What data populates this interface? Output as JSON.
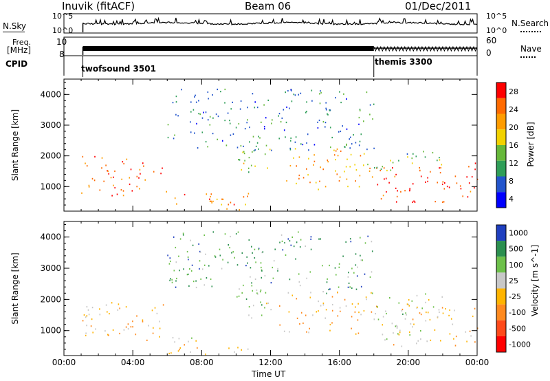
{
  "header": {
    "station": "Inuvik (fitACF)",
    "beam": "Beam 06",
    "date": "01/Dec/2011"
  },
  "strip_labels": {
    "nsky": "N.Sky",
    "nsky_hi": "10^5",
    "nsky_lo": "10^0",
    "nsearch": "N.Search",
    "nsearch_hi": "10^5",
    "nsearch_lo": "10^0",
    "freq_line1": "Freq.",
    "freq_line2": "[MHz]",
    "freq_hi": "10",
    "freq_lo": "8",
    "nave": "Nave",
    "nave_hi": "60",
    "nave_lo": "0",
    "cpid": "CPID"
  },
  "modes": [
    {
      "name": "twofsound 3501",
      "start_hour": 1.1
    },
    {
      "name": "themis 3300",
      "start_hour": 18.0
    }
  ],
  "colors": {
    "power_scale": [
      "#0000ff",
      "#2255cc",
      "#2f9e58",
      "#66b83a",
      "#f2d200",
      "#ff9c00",
      "#ff6a00",
      "#ff0000"
    ],
    "velocity_scale": [
      "#1f3fbf",
      "#2b8f4f",
      "#6dc04a",
      "#c8c8c8",
      "#ffb400",
      "#ff8a1f",
      "#ff4a1a",
      "#ff0000"
    ]
  },
  "chart_data": [
    {
      "type": "heatmap",
      "panel": "power",
      "ylabel": "Slant Range [km]",
      "xlabel": "Time UT",
      "x_ticks": [
        "00:00",
        "04:00",
        "08:00",
        "12:00",
        "16:00",
        "20:00",
        "00:00"
      ],
      "xlim_hours": [
        0,
        24
      ],
      "y_ticks": [
        1000,
        2000,
        3000,
        4000
      ],
      "ylim": [
        200,
        4500
      ],
      "colorbar_label": "Power [dB]",
      "colorbar_ticks": [
        "28",
        "24",
        "20",
        "16",
        "12",
        "8",
        "4"
      ],
      "colorbar_range": [
        0,
        30
      ],
      "scatter_regions": [
        {
          "x0": 1.0,
          "x1": 6.0,
          "y0": 700,
          "y1": 2000,
          "level": 24
        },
        {
          "x0": 6.0,
          "x1": 11.0,
          "y0": 250,
          "y1": 800,
          "level": 22
        },
        {
          "x0": 10.0,
          "x1": 12.0,
          "y0": 1300,
          "y1": 2300,
          "level": 14
        },
        {
          "x0": 12.5,
          "x1": 18.0,
          "y0": 900,
          "y1": 2300,
          "level": 20
        },
        {
          "x0": 18.0,
          "x1": 24.0,
          "y0": 500,
          "y1": 1800,
          "level": 27
        },
        {
          "x0": 18.0,
          "x1": 22.0,
          "y0": 1500,
          "y1": 2200,
          "level": 12
        },
        {
          "x0": 6.0,
          "x1": 18.0,
          "y0": 2200,
          "y1": 4200,
          "level": 8
        }
      ]
    },
    {
      "type": "heatmap",
      "panel": "velocity",
      "ylabel": "Slant Range [km]",
      "xlabel": "Time UT",
      "x_ticks": [
        "00:00",
        "04:00",
        "08:00",
        "12:00",
        "16:00",
        "20:00",
        "00:00"
      ],
      "xlim_hours": [
        0,
        24
      ],
      "y_ticks": [
        1000,
        2000,
        3000,
        4000
      ],
      "ylim": [
        200,
        4500
      ],
      "colorbar_label": "Velocity [m s^-1]",
      "colorbar_ticks": [
        "1000",
        "500",
        "100",
        "25",
        "-25",
        "-100",
        "-500",
        "-1000"
      ],
      "colorbar_range": [
        -1200,
        1200
      ],
      "scatter_regions": [
        {
          "x0": 1.0,
          "x1": 6.0,
          "y0": 700,
          "y1": 2000,
          "level": -150
        },
        {
          "x0": 6.0,
          "x1": 11.0,
          "y0": 250,
          "y1": 800,
          "level": 40
        },
        {
          "x0": 10.0,
          "x1": 12.0,
          "y0": 1300,
          "y1": 2300,
          "level": 300
        },
        {
          "x0": 12.5,
          "x1": 18.0,
          "y0": 900,
          "y1": 2300,
          "level": -120
        },
        {
          "x0": 18.0,
          "x1": 24.0,
          "y0": 500,
          "y1": 1800,
          "level": -90
        },
        {
          "x0": 18.0,
          "x1": 22.0,
          "y0": 1500,
          "y1": 2200,
          "level": 200
        },
        {
          "x0": 6.0,
          "x1": 18.0,
          "y0": 2200,
          "y1": 4200,
          "level": 600
        }
      ]
    }
  ]
}
